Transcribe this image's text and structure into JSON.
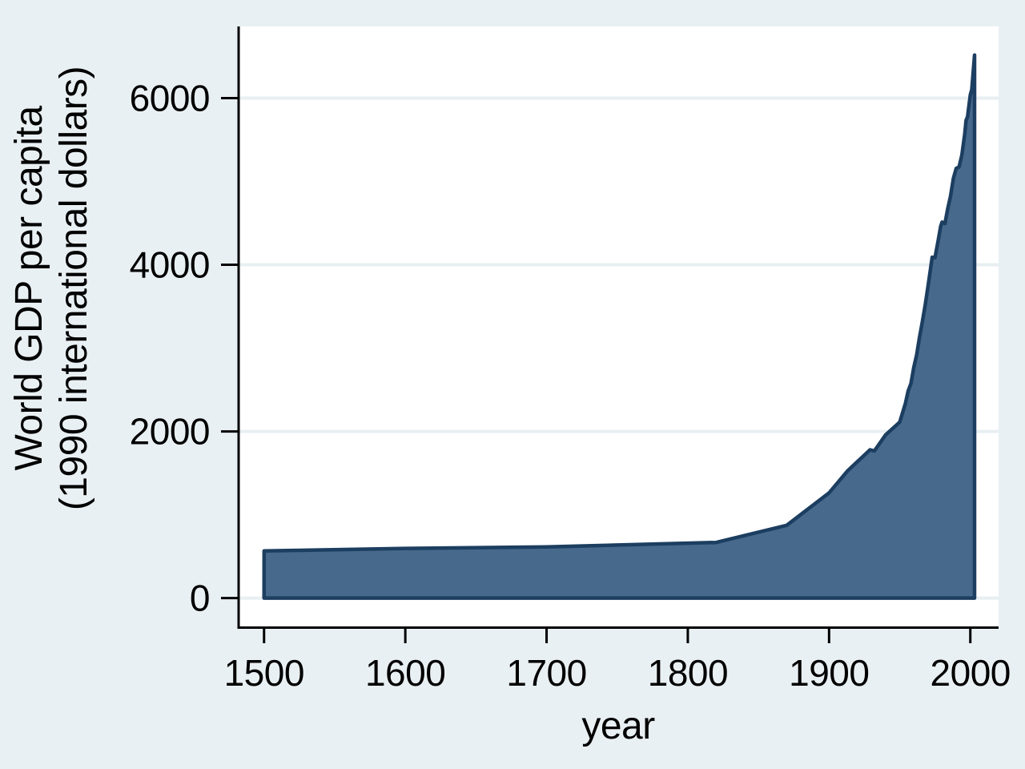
{
  "chart_data": {
    "type": "area",
    "title": "",
    "xlabel": "year",
    "ylabel": "World GDP per capita (1990 international dollars)",
    "ylabel_lines": [
      "World GDP per capita",
      "(1990 international dollars)"
    ],
    "series_name": "World GDP per capita",
    "x": [
      1500,
      1600,
      1700,
      1820,
      1870,
      1900,
      1913,
      1929,
      1932,
      1940,
      1950,
      1952,
      1954,
      1956,
      1958,
      1960,
      1962,
      1964,
      1966,
      1968,
      1970,
      1973,
      1975,
      1977,
      1979,
      1980,
      1982,
      1984,
      1986,
      1988,
      1990,
      1992,
      1994,
      1996,
      1997,
      1998,
      2000,
      2001,
      2003
    ],
    "y": [
      566,
      596,
      615,
      667,
      873,
      1262,
      1526,
      1780,
      1765,
      1958,
      2111,
      2224,
      2334,
      2486,
      2576,
      2773,
      2919,
      3126,
      3310,
      3513,
      3736,
      4091,
      4086,
      4271,
      4462,
      4512,
      4494,
      4672,
      4824,
      5038,
      5157,
      5173,
      5313,
      5566,
      5732,
      5774,
      6038,
      6101,
      6516
    ],
    "baseline": 0,
    "x_ticks": [
      1500,
      1600,
      1700,
      1800,
      1900,
      2000
    ],
    "y_ticks": [
      0,
      2000,
      4000,
      6000
    ],
    "xlim": [
      1482,
      2020
    ],
    "ylim": [
      -340,
      6860
    ],
    "grid": "horizontal gridlines at y ticks",
    "legend": "none",
    "colors": {
      "page_background": "#E9F0F3",
      "plot_background": "#FFFFFF",
      "gridline": "#E8EFF2",
      "area_fill": "#46698C",
      "area_outline": "#1C3E60",
      "axis": "#000000",
      "text": "#000000"
    }
  }
}
